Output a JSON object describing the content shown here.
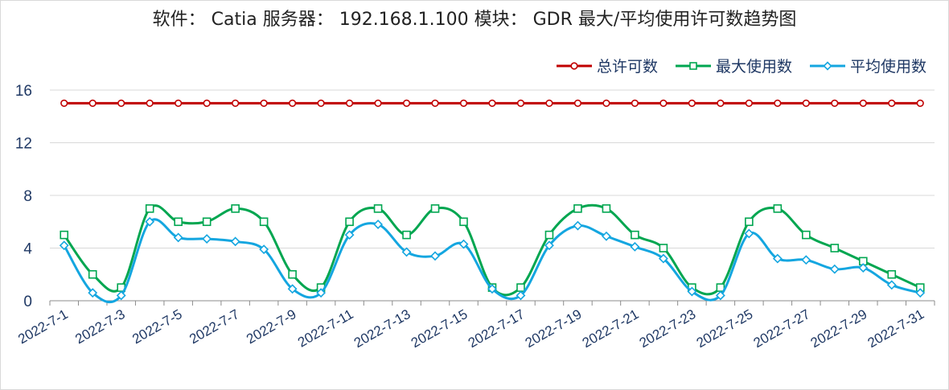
{
  "chart_data": {
    "type": "line",
    "title": "软件： Catia 服务器： 192.168.1.100 模块： GDR  最大/平均使用许可数趋势图",
    "categories": [
      "2022-7-1",
      "2022-7-2",
      "2022-7-3",
      "2022-7-4",
      "2022-7-5",
      "2022-7-6",
      "2022-7-7",
      "2022-7-8",
      "2022-7-9",
      "2022-7-10",
      "2022-7-11",
      "2022-7-12",
      "2022-7-13",
      "2022-7-14",
      "2022-7-15",
      "2022-7-16",
      "2022-7-17",
      "2022-7-18",
      "2022-7-19",
      "2022-7-20",
      "2022-7-21",
      "2022-7-22",
      "2022-7-23",
      "2022-7-24",
      "2022-7-25",
      "2022-7-26",
      "2022-7-27",
      "2022-7-28",
      "2022-7-29",
      "2022-7-30",
      "2022-7-31"
    ],
    "x_tick_labels": [
      "2022-7-1",
      "2022-7-3",
      "2022-7-5",
      "2022-7-7",
      "2022-7-9",
      "2022-7-11",
      "2022-7-13",
      "2022-7-15",
      "2022-7-17",
      "2022-7-19",
      "2022-7-21",
      "2022-7-23",
      "2022-7-25",
      "2022-7-27",
      "2022-7-29",
      "2022-7-31"
    ],
    "y_ticks": [
      0,
      4,
      8,
      12,
      16
    ],
    "ylim": [
      0,
      16
    ],
    "grid": true,
    "legend_position": "top-right",
    "series": [
      {
        "name": "总许可数",
        "color": "#c00000",
        "marker": "circle",
        "values": [
          15,
          15,
          15,
          15,
          15,
          15,
          15,
          15,
          15,
          15,
          15,
          15,
          15,
          15,
          15,
          15,
          15,
          15,
          15,
          15,
          15,
          15,
          15,
          15,
          15,
          15,
          15,
          15,
          15,
          15,
          15
        ]
      },
      {
        "name": "最大使用数",
        "color": "#00a650",
        "marker": "square",
        "values": [
          5,
          2,
          1,
          7,
          6,
          6,
          7,
          6,
          2,
          1,
          6,
          7,
          5,
          7,
          6,
          1,
          1,
          5,
          7,
          7,
          5,
          4,
          1,
          1,
          6,
          7,
          5,
          4,
          3,
          2,
          1
        ]
      },
      {
        "name": "平均使用数",
        "color": "#14a6e0",
        "marker": "diamond",
        "values": [
          4.2,
          0.6,
          0.4,
          6,
          4.8,
          4.7,
          4.5,
          3.9,
          0.9,
          0.6,
          5,
          5.8,
          3.7,
          3.4,
          4.3,
          0.9,
          0.4,
          4.2,
          5.7,
          4.9,
          4.1,
          3.2,
          0.7,
          0.4,
          5.1,
          3.2,
          3.1,
          2.4,
          2.5,
          1.2,
          0.6
        ]
      }
    ]
  }
}
